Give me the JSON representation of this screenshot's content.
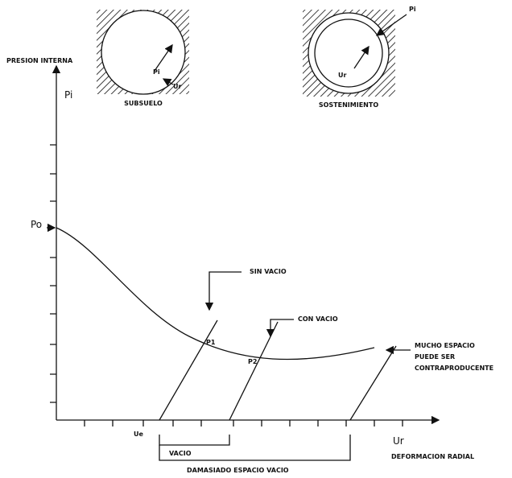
{
  "diagram": {
    "y_axis": {
      "title": "PRESION INTERNA",
      "symbol": "Pi",
      "initial": "Po"
    },
    "x_axis": {
      "symbol": "Ur",
      "title": "DEFORMACION RADIAL",
      "elastic": "Ue"
    },
    "insets": [
      {
        "caption": "SUBSUELO",
        "pressure": "Pi",
        "displacement": "Ur"
      },
      {
        "caption": "SOSTENIMIENTO",
        "pressure": "Pi",
        "displacement": "Ur"
      }
    ],
    "points": [
      "P1",
      "P2"
    ],
    "annotations": {
      "no_gap": "SIN VACIO",
      "with_gap": "CON VACIO",
      "too_much": [
        "MUCHO ESPACIO",
        "PUEDE SER",
        "CONTRAPRODUCENTE"
      ],
      "gap": "VACIO",
      "large_gap": "DAMASIADO ESPACIO VACIO"
    }
  }
}
